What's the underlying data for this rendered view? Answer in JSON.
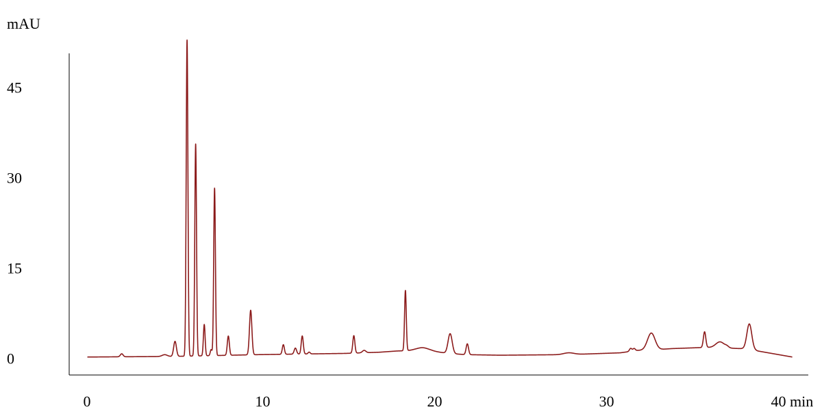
{
  "chart_data": {
    "type": "line",
    "title": "",
    "ylabel": "mAU",
    "xunit": "min",
    "xlim": [
      -1,
      42
    ],
    "ylim": [
      -1.5,
      55
    ],
    "x_ticks": [
      {
        "value": 0,
        "label": "0"
      },
      {
        "value": 10,
        "label": "10"
      },
      {
        "value": 20,
        "label": "20"
      },
      {
        "value": 30,
        "label": "30"
      },
      {
        "value": 40,
        "label": "40 min"
      }
    ],
    "y_ticks": [
      {
        "value": 0,
        "label": "0"
      },
      {
        "value": 15,
        "label": "15"
      },
      {
        "value": 30,
        "label": "30"
      },
      {
        "value": 45,
        "label": "45"
      }
    ],
    "grid": false,
    "line_color": "#8b1a1a",
    "baseline": [
      [
        0,
        0.2
      ],
      [
        5,
        0.3
      ],
      [
        10,
        0.6
      ],
      [
        15,
        0.8
      ],
      [
        16,
        0.9
      ],
      [
        17,
        1.0
      ],
      [
        18,
        1.2
      ],
      [
        19,
        1.3
      ],
      [
        20,
        1.2
      ],
      [
        21,
        0.8
      ],
      [
        22,
        0.6
      ],
      [
        24,
        0.5
      ],
      [
        28,
        0.6
      ],
      [
        31,
        0.9
      ],
      [
        32,
        1.3
      ],
      [
        33,
        1.4
      ],
      [
        34,
        1.6
      ],
      [
        35,
        1.7
      ],
      [
        36,
        1.8
      ],
      [
        37,
        1.7
      ],
      [
        38,
        1.6
      ],
      [
        38.6,
        1.6
      ],
      [
        39,
        1.2
      ],
      [
        40,
        0.7
      ],
      [
        41,
        0.2
      ]
    ],
    "peaks": [
      {
        "rt": 2.0,
        "height": 0.5,
        "width": 0.08
      },
      {
        "rt": 4.5,
        "height": 0.3,
        "width": 0.15
      },
      {
        "rt": 5.1,
        "height": 2.5,
        "width": 0.08
      },
      {
        "rt": 5.8,
        "height": 52.5,
        "width": 0.05
      },
      {
        "rt": 6.3,
        "height": 35.2,
        "width": 0.05
      },
      {
        "rt": 6.8,
        "height": 5.2,
        "width": 0.05
      },
      {
        "rt": 7.2,
        "height": 1.0,
        "width": 0.05
      },
      {
        "rt": 7.4,
        "height": 27.8,
        "width": 0.05
      },
      {
        "rt": 8.2,
        "height": 3.2,
        "width": 0.06
      },
      {
        "rt": 9.5,
        "height": 7.4,
        "width": 0.07
      },
      {
        "rt": 11.4,
        "height": 1.6,
        "width": 0.06
      },
      {
        "rt": 12.1,
        "height": 1.0,
        "width": 0.07
      },
      {
        "rt": 12.5,
        "height": 3.0,
        "width": 0.06
      },
      {
        "rt": 12.9,
        "height": 0.3,
        "width": 0.06
      },
      {
        "rt": 15.5,
        "height": 2.9,
        "width": 0.06
      },
      {
        "rt": 16.1,
        "height": 0.4,
        "width": 0.1
      },
      {
        "rt": 18.5,
        "height": 10.0,
        "width": 0.05
      },
      {
        "rt": 19.5,
        "height": 0.5,
        "width": 0.35
      },
      {
        "rt": 21.1,
        "height": 3.3,
        "width": 0.12
      },
      {
        "rt": 22.1,
        "height": 1.8,
        "width": 0.07
      },
      {
        "rt": 28.0,
        "height": 0.3,
        "width": 0.3
      },
      {
        "rt": 31.6,
        "height": 0.5,
        "width": 0.07
      },
      {
        "rt": 31.8,
        "height": 0.4,
        "width": 0.07
      },
      {
        "rt": 32.8,
        "height": 2.8,
        "width": 0.22
      },
      {
        "rt": 35.9,
        "height": 2.6,
        "width": 0.07
      },
      {
        "rt": 36.8,
        "height": 1.0,
        "width": 0.25
      },
      {
        "rt": 37.2,
        "height": 0.2,
        "width": 0.1
      },
      {
        "rt": 38.5,
        "height": 4.1,
        "width": 0.14
      }
    ]
  }
}
